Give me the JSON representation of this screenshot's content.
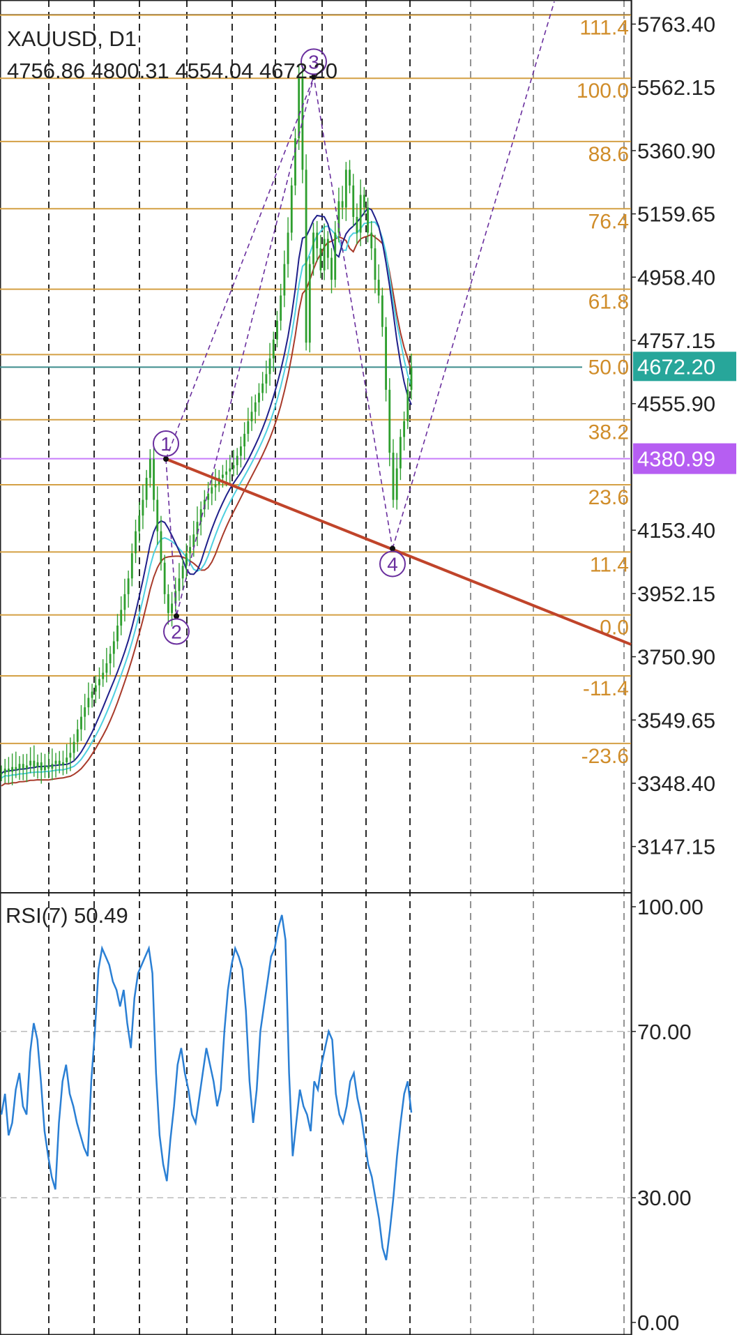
{
  "header": {
    "symbol_timeframe": "XAUUSD, D1",
    "ohlc": "4756.86 4800.31 4554.04 4672.20"
  },
  "rsi_panel": {
    "label": "RSI(7) 50.49"
  },
  "colors": {
    "fib_line": "#d4a044",
    "fib_label": "#d08d2a",
    "bid_line": "#3c8c8c",
    "bid_badge": "#27a69a",
    "alert_line": "#c77dfa",
    "alert_badge": "#b65ef2",
    "trendline": "#c0442a",
    "wave_marker": "#6a2f9e",
    "ma_fast": "#1f1f8a",
    "ma_mid": "#4fd0e0",
    "ma_slow": "#a83a2a",
    "candle": "#2e9e2e",
    "rsi_line": "#2a7fd4",
    "axis_text": "#222222"
  },
  "chart_data": [
    {
      "type": "candlestick",
      "symbol": "XAUUSD",
      "timeframe": "D1",
      "ohlc_last": {
        "open": 4756.86,
        "high": 4800.31,
        "low": 4554.04,
        "close": 4672.2
      },
      "y_ticks": [
        5763.4,
        5562.15,
        5360.9,
        5159.65,
        4958.4,
        4757.15,
        4555.9,
        4153.4,
        3952.15,
        3750.9,
        3549.65,
        3348.4,
        3147.15
      ],
      "y_tick_labels": [
        "5763.40",
        "5562.15",
        "5360.90",
        "5159.65",
        "4958.40",
        "4757.15",
        "4555.90",
        "4153.40",
        "3952.15",
        "3750.90",
        "3549.65",
        "3348.40",
        "3147.15"
      ],
      "ylim": [
        3000,
        5840
      ],
      "bid_price": 4672.2,
      "bid_label": "4672.20",
      "alert_price": 4380.99,
      "alert_label": "4380.99",
      "fib_levels": [
        {
          "label": "111.4",
          "price": 5792
        },
        {
          "label": "100.0",
          "price": 5591
        },
        {
          "label": "88.6",
          "price": 5390
        },
        {
          "label": "76.4",
          "price": 5176
        },
        {
          "label": "61.8",
          "price": 4920
        },
        {
          "label": "50.0",
          "price": 4712
        },
        {
          "label": "38.2",
          "price": 4505
        },
        {
          "label": "23.6",
          "price": 4298
        },
        {
          "label": "11.4",
          "price": 4084
        },
        {
          "label": "0.0",
          "price": 3884
        },
        {
          "label": "-11.4",
          "price": 3690
        },
        {
          "label": "-23.6",
          "price": 3475
        }
      ],
      "wave_points": [
        {
          "label": "1",
          "price": 4380
        },
        {
          "label": "2",
          "price": 3880
        },
        {
          "label": "3",
          "price": 5595
        },
        {
          "label": "4",
          "price": 4095
        }
      ],
      "trendline": {
        "start_price": 4380,
        "end_price": 3790
      },
      "projection": {
        "from_price": 4095,
        "to_price": 5835
      },
      "closes": [
        3380,
        3395,
        3385,
        3400,
        3390,
        3410,
        3395,
        3405,
        3420,
        3400,
        3415,
        3390,
        3405,
        3395,
        3410,
        3420,
        3405,
        3415,
        3430,
        3445,
        3480,
        3520,
        3560,
        3590,
        3620,
        3640,
        3660,
        3680,
        3700,
        3730,
        3760,
        3800,
        3850,
        3900,
        3950,
        4000,
        4080,
        4150,
        4200,
        4250,
        4320,
        4380,
        4250,
        4150,
        4050,
        3950,
        3890,
        3920,
        3960,
        4000,
        4040,
        4080,
        4100,
        4140,
        4180,
        4220,
        4250,
        4270,
        4290,
        4300,
        4320,
        4330,
        4340,
        4350,
        4360,
        4390,
        4420,
        4460,
        4500,
        4530,
        4560,
        4590,
        4620,
        4650,
        4700,
        4760,
        4820,
        4900,
        5000,
        5100,
        5250,
        5400,
        5595,
        5300,
        4750,
        5000,
        5100,
        5050,
        4980,
        5080,
        5020,
        4950,
        5100,
        5200,
        5180,
        5300,
        5250,
        5150,
        5100,
        5220,
        5180,
        5100,
        5050,
        4950,
        4900,
        4800,
        4600,
        4400,
        4250,
        4350,
        4450,
        4500,
        4600,
        4672.2
      ]
    },
    {
      "type": "line",
      "title": "RSI(7) 50.49",
      "value_last": 50.49,
      "ylim": [
        0,
        100
      ],
      "y_ticks": [
        100.0,
        70.0,
        30.0,
        0.0
      ],
      "y_tick_labels": [
        "100.00",
        "70.00",
        "30.00",
        "0.00"
      ],
      "levels": [
        70,
        30
      ],
      "values": [
        50,
        55,
        45,
        48,
        56,
        60,
        52,
        50,
        65,
        72,
        68,
        58,
        46,
        40,
        35,
        32,
        48,
        58,
        62,
        55,
        52,
        48,
        45,
        42,
        40,
        58,
        70,
        85,
        90,
        88,
        86,
        82,
        80,
        76,
        80,
        72,
        66,
        78,
        84,
        86,
        88,
        90,
        84,
        60,
        45,
        38,
        34,
        44,
        52,
        62,
        66,
        60,
        56,
        50,
        48,
        54,
        60,
        66,
        62,
        58,
        52,
        56,
        70,
        80,
        86,
        90,
        88,
        85,
        75,
        58,
        48,
        56,
        70,
        76,
        82,
        88,
        90,
        95,
        98,
        92,
        60,
        40,
        48,
        56,
        52,
        50,
        46,
        58,
        56,
        62,
        66,
        70,
        68,
        55,
        50,
        48,
        52,
        58,
        60,
        54,
        50,
        44,
        38,
        35,
        30,
        25,
        18,
        15,
        22,
        30,
        40,
        48,
        55,
        58,
        50.49
      ]
    }
  ]
}
